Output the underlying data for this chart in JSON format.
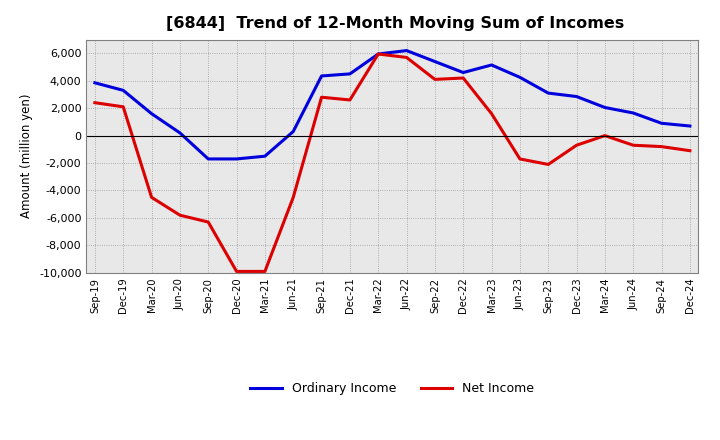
{
  "title": "[6844]  Trend of 12-Month Moving Sum of Incomes",
  "ylabel": "Amount (million yen)",
  "x_labels": [
    "Sep-19",
    "Dec-19",
    "Mar-20",
    "Jun-20",
    "Sep-20",
    "Dec-20",
    "Mar-21",
    "Jun-21",
    "Sep-21",
    "Dec-21",
    "Mar-22",
    "Jun-22",
    "Sep-22",
    "Dec-22",
    "Mar-23",
    "Jun-23",
    "Sep-23",
    "Dec-23",
    "Mar-24",
    "Jun-24",
    "Sep-24",
    "Dec-24"
  ],
  "ordinary_income": [
    3850,
    3300,
    1600,
    200,
    -1700,
    -1700,
    -1500,
    300,
    4350,
    4500,
    5950,
    6200,
    5400,
    4600,
    5150,
    4250,
    3100,
    2850,
    2050,
    1650,
    900,
    700
  ],
  "net_income": [
    2400,
    2100,
    -4500,
    -5800,
    -6300,
    -9900,
    -9900,
    -4500,
    2800,
    2600,
    5950,
    5700,
    4100,
    4200,
    1600,
    -1700,
    -2100,
    -700,
    0,
    -700,
    -800,
    -1100
  ],
  "ordinary_color": "#0000dd",
  "net_color": "#dd0000",
  "ylim": [
    -10000,
    7000
  ],
  "yticks": [
    -10000,
    -8000,
    -6000,
    -4000,
    -2000,
    0,
    2000,
    4000,
    6000
  ],
  "plot_bg_color": "#e8e8e8",
  "fig_bg_color": "#ffffff",
  "grid_color": "#888888",
  "legend_labels": [
    "Ordinary Income",
    "Net Income"
  ]
}
